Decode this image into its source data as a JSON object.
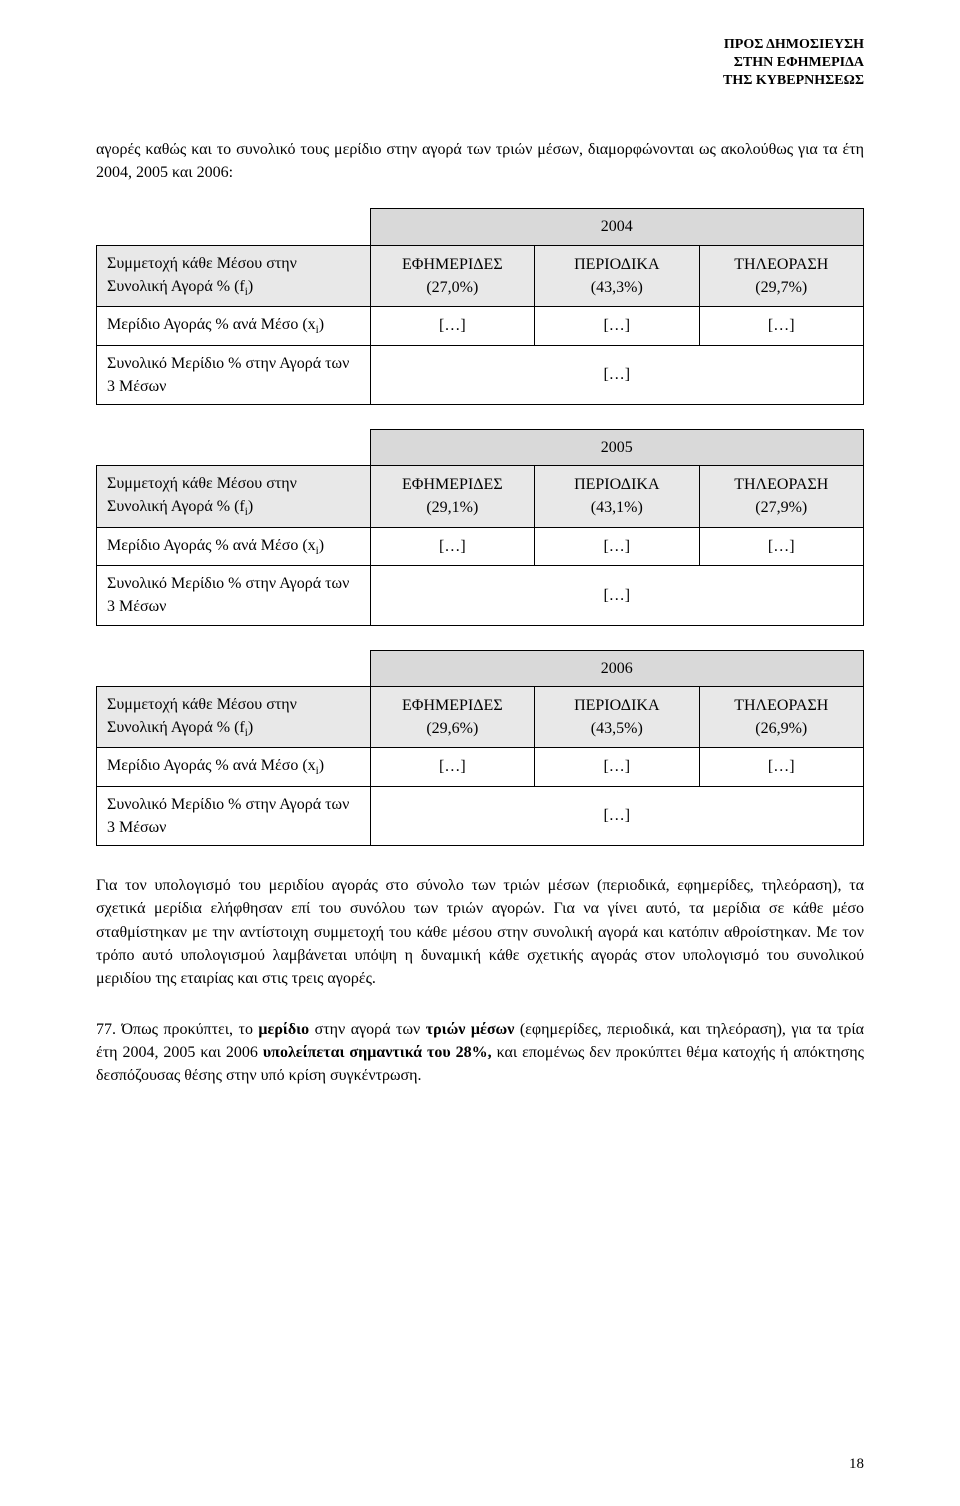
{
  "top_note": {
    "l1": "ΠΡΟΣ ΔΗΜΟΣΙΕΥΣΗ",
    "l2": "ΣΤΗΝ ΕΦΗΜΕΡΙΔΑ",
    "l3": "ΤΗΣ ΚΥΒΕΡΝΗΣΕΩΣ"
  },
  "intro": "αγορές καθώς και το συνολικό τους μερίδιο στην αγορά των τριών μέσων, διαμορφώνονται ως ακολούθως για τα έτη 2004, 2005 και 2006:",
  "row_labels": {
    "participation_pre": "Συμμετοχή κάθε Μέσου στην Συνολική Αγορά % (f",
    "participation_sub": "i",
    "participation_post": ")",
    "share_pre": "Μερίδιο Αγοράς % ανά Μέσο (x",
    "share_sub": "i",
    "share_post": ")",
    "total": "Συνολικό Μερίδιο % στην Αγορά των 3 Μέσων"
  },
  "col_labels": {
    "news": "ΕΦΗΜΕΡΙΔΕΣ",
    "period": "ΠΕΡΙΟΔΙΚΑ",
    "tv": "ΤΗΛΕΟΡΑΣΗ"
  },
  "placeholder": "[…]",
  "tables": [
    {
      "year": "2004",
      "news_pct": "(27,0%)",
      "period_pct": "(43,3%)",
      "tv_pct": "(29,7%)"
    },
    {
      "year": "2005",
      "news_pct": "(29,1%)",
      "period_pct": "(43,1%)",
      "tv_pct": "(27,9%)"
    },
    {
      "year": "2006",
      "news_pct": "(29,6%)",
      "period_pct": "(43,5%)",
      "tv_pct": "(26,9%)"
    }
  ],
  "para1": "Για τον υπολογισμό του μεριδίου αγοράς στο σύνολο των τριών μέσων (περιοδικά, εφημερίδες, τηλεόραση), τα σχετικά μερίδια ελήφθησαν επί του συνόλου των τριών αγορών. Για να γίνει αυτό, τα μερίδια σε κάθε μέσο σταθμίστηκαν με την αντίστοιχη συμμετοχή του κάθε μέσου στην συνολική αγορά και κατόπιν αθροίστηκαν. Με τον τρόπο αυτό υπολογισμού λαμβάνεται υπόψη η δυναμική κάθε σχετικής αγοράς στον υπολογισμό του συνολικού μεριδίου της εταιρίας και στις τρεις αγορές.",
  "para2_prefix": "77. ",
  "para2": "Όπως προκύπτει, το μερίδιο στην αγορά των τριών μέσων (εφημερίδες, περιοδικά, και τηλεόραση), για τα τρία έτη 2004, 2005 και 2006 υπολείπεται σημαντικά του 28%, και επομένως δεν προκύπτει θέμα κατοχής ή απόκτησης δεσπόζουσας θέσης στην υπό κρίση συγκέντρωση.",
  "bold_words": {
    "b1": "μερίδιο",
    "b2": "τριών μέσων",
    "b3": "υπολείπεται σημαντικά του 28%,"
  },
  "page_number": "18"
}
